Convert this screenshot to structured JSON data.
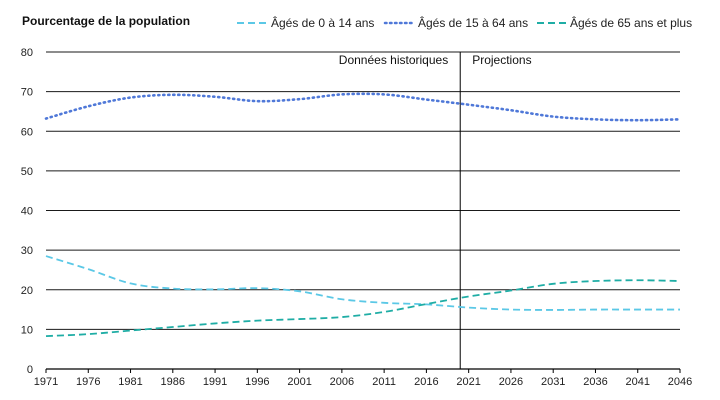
{
  "chart_data": {
    "type": "line",
    "title": "",
    "ylabel": "Pourcentage de la population",
    "xlabel": "",
    "ylim": [
      0,
      80
    ],
    "xlim": [
      1971,
      2046
    ],
    "yticks": [
      0,
      10,
      20,
      30,
      40,
      50,
      60,
      70,
      80
    ],
    "xticks": [
      1971,
      1976,
      1981,
      1986,
      1991,
      1996,
      2001,
      2006,
      2011,
      2016,
      2021,
      2026,
      2031,
      2036,
      2041,
      2046
    ],
    "grid": "horizontal",
    "legend_position": "top",
    "divider": {
      "x": 2020,
      "left_label": "Données historiques",
      "right_label": "Projections"
    },
    "series": [
      {
        "name": "Âgés de 0 à 14 ans",
        "style": "dashed",
        "color": "#5bc8e6",
        "x": [
          1971,
          1976,
          1981,
          1986,
          1991,
          1996,
          2001,
          2006,
          2011,
          2016,
          2021,
          2026,
          2031,
          2036,
          2041,
          2046
        ],
        "values": [
          28.5,
          25.2,
          21.6,
          20.3,
          20.1,
          20.4,
          19.6,
          17.6,
          16.7,
          16.3,
          15.5,
          15.0,
          14.9,
          15.0,
          15.0,
          15.0
        ]
      },
      {
        "name": "Âgés de 15 à 64 ans",
        "style": "dotted",
        "color": "#4f78d8",
        "x": [
          1971,
          1976,
          1981,
          1986,
          1991,
          1996,
          2001,
          2006,
          2011,
          2016,
          2021,
          2026,
          2031,
          2036,
          2041,
          2046
        ],
        "values": [
          63.2,
          66.3,
          68.5,
          69.2,
          68.7,
          67.6,
          68.1,
          69.3,
          69.3,
          68.0,
          66.7,
          65.3,
          63.7,
          63.0,
          62.8,
          63.0
        ]
      },
      {
        "name": "Âgés de 65 ans et plus",
        "style": "dashed",
        "color": "#1fada5",
        "x": [
          1971,
          1976,
          1981,
          1986,
          1991,
          1996,
          2001,
          2006,
          2011,
          2016,
          2021,
          2026,
          2031,
          2036,
          2041,
          2046
        ],
        "values": [
          8.3,
          8.8,
          9.7,
          10.6,
          11.5,
          12.2,
          12.6,
          13.1,
          14.4,
          16.4,
          18.3,
          19.8,
          21.5,
          22.2,
          22.4,
          22.2
        ]
      }
    ]
  }
}
